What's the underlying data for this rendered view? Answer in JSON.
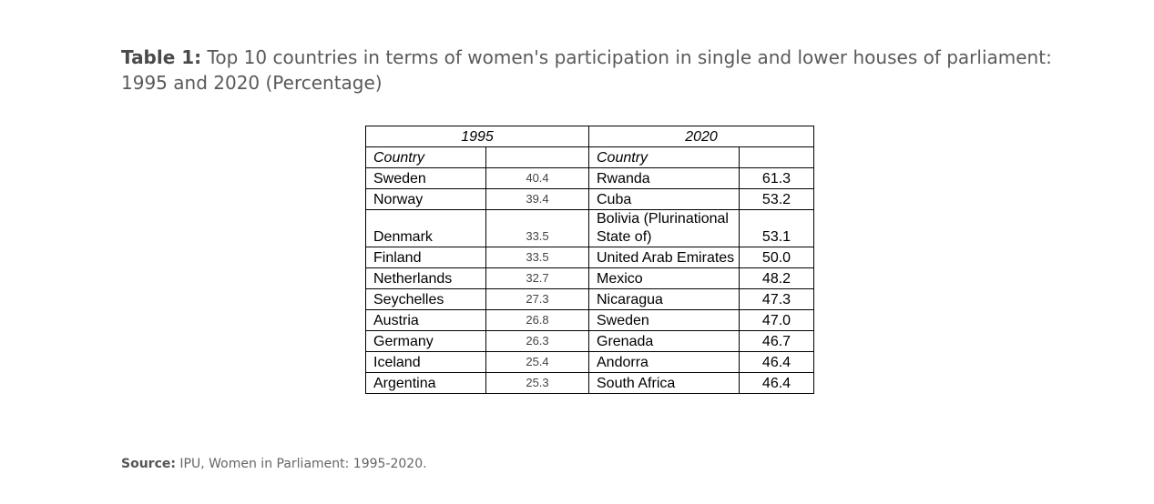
{
  "caption": {
    "label": "Table 1:",
    "text": " Top 10 countries in terms of women's participation in single and lower houses of parliament: 1995 and 2020 (Percentage)"
  },
  "table": {
    "year1": "1995",
    "year2": "2020",
    "country_header": "Country",
    "rows": [
      {
        "c1995": "Sweden",
        "v1995": "40.4",
        "c2020": "Rwanda",
        "v2020": "61.3"
      },
      {
        "c1995": "Norway",
        "v1995": "39.4",
        "c2020": "Cuba",
        "v2020": "53.2"
      },
      {
        "c1995": "Denmark",
        "v1995": "33.5",
        "c2020": "Bolivia (Plurinational State of)",
        "v2020": "53.1"
      },
      {
        "c1995": "Finland",
        "v1995": "33.5",
        "c2020": "United Arab Emirates",
        "v2020": "50.0"
      },
      {
        "c1995": "Netherlands",
        "v1995": "32.7",
        "c2020": "Mexico",
        "v2020": "48.2"
      },
      {
        "c1995": "Seychelles",
        "v1995": "27.3",
        "c2020": "Nicaragua",
        "v2020": "47.3"
      },
      {
        "c1995": "Austria",
        "v1995": "26.8",
        "c2020": "Sweden",
        "v2020": "47.0"
      },
      {
        "c1995": "Germany",
        "v1995": "26.3",
        "c2020": "Grenada",
        "v2020": "46.7"
      },
      {
        "c1995": "Iceland",
        "v1995": "25.4",
        "c2020": "Andorra",
        "v2020": "46.4"
      },
      {
        "c1995": "Argentina",
        "v1995": "25.3",
        "c2020": "South Africa",
        "v2020": "46.4"
      }
    ]
  },
  "source": {
    "label": "Source:",
    "text": " IPU, Women in Parliament: 1995-2020."
  }
}
